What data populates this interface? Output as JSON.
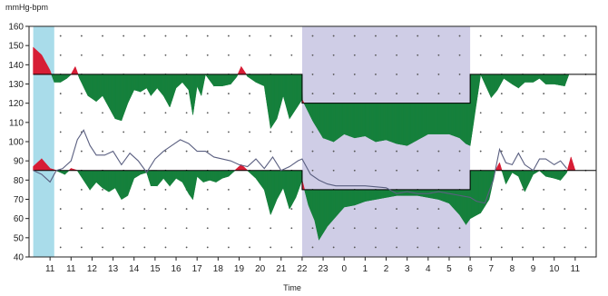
{
  "chart_data": {
    "type": "area",
    "ylabel": "mmHg-bpm",
    "xlabel": "Time",
    "ylim": [
      40,
      160
    ],
    "yticks": [
      40,
      50,
      60,
      70,
      80,
      90,
      100,
      110,
      120,
      130,
      140,
      150,
      160
    ],
    "xticks": [
      "11",
      "11",
      "12",
      "13",
      "14",
      "15",
      "16",
      "17",
      "18",
      "19",
      "20",
      "21",
      "22",
      "23",
      "0",
      "1",
      "2",
      "3",
      "4",
      "5",
      "6",
      "7",
      "8",
      "9",
      "10",
      "11"
    ],
    "xlim": [
      0,
      27
    ],
    "grid": "dotted",
    "shaded_regions": [
      {
        "from": 0.2,
        "to": 1.2,
        "color": "#a9dcea"
      },
      {
        "from": 13.0,
        "to": 21.0,
        "color": "#cfcde6"
      }
    ],
    "colors": {
      "above": "#d71e36",
      "below": "#16803c",
      "line": "#5a5f80"
    },
    "series": [
      {
        "threshold": [
          [
            0.2,
            135
          ],
          [
            13.0,
            135
          ],
          [
            13.0,
            120
          ],
          [
            21.0,
            120
          ],
          [
            21.0,
            135
          ],
          [
            27.0,
            135
          ]
        ],
        "values": [
          [
            0.2,
            149
          ],
          [
            0.6,
            145
          ],
          [
            1.0,
            137
          ],
          [
            1.2,
            131
          ],
          [
            1.5,
            131
          ],
          [
            1.8,
            133
          ],
          [
            2.0,
            135
          ],
          [
            2.2,
            139
          ],
          [
            2.4,
            133
          ],
          [
            2.8,
            124
          ],
          [
            3.2,
            121
          ],
          [
            3.5,
            124
          ],
          [
            3.8,
            118
          ],
          [
            4.1,
            112
          ],
          [
            4.4,
            111
          ],
          [
            4.7,
            120
          ],
          [
            5.0,
            127
          ],
          [
            5.3,
            126
          ],
          [
            5.6,
            128
          ],
          [
            5.8,
            124
          ],
          [
            6.1,
            128
          ],
          [
            6.4,
            124
          ],
          [
            6.7,
            118
          ],
          [
            7.0,
            128
          ],
          [
            7.3,
            131
          ],
          [
            7.6,
            127
          ],
          [
            7.8,
            114
          ],
          [
            8.0,
            129
          ],
          [
            8.2,
            124
          ],
          [
            8.4,
            135
          ],
          [
            8.8,
            129
          ],
          [
            9.2,
            129
          ],
          [
            9.6,
            130
          ],
          [
            9.9,
            134
          ],
          [
            10.1,
            139
          ],
          [
            10.4,
            134
          ],
          [
            10.8,
            131
          ],
          [
            11.2,
            129
          ],
          [
            11.5,
            107
          ],
          [
            11.8,
            112
          ],
          [
            12.1,
            124
          ],
          [
            12.4,
            112
          ],
          [
            12.7,
            117
          ],
          [
            13.0,
            122
          ],
          [
            13.5,
            111
          ],
          [
            14.0,
            102
          ],
          [
            14.5,
            100
          ],
          [
            15.0,
            104
          ],
          [
            15.5,
            102
          ],
          [
            16.0,
            103
          ],
          [
            16.5,
            100
          ],
          [
            17.0,
            101
          ],
          [
            17.5,
            99
          ],
          [
            18.0,
            98
          ],
          [
            18.5,
            101
          ],
          [
            19.0,
            104
          ],
          [
            19.5,
            104
          ],
          [
            20.0,
            104
          ],
          [
            20.5,
            102
          ],
          [
            20.8,
            99
          ],
          [
            21.0,
            98
          ],
          [
            21.5,
            135
          ],
          [
            22.0,
            123
          ],
          [
            22.3,
            127
          ],
          [
            22.6,
            133
          ],
          [
            23.0,
            130
          ],
          [
            23.3,
            128
          ],
          [
            23.6,
            131
          ],
          [
            24.0,
            131
          ],
          [
            24.3,
            133
          ],
          [
            24.6,
            130
          ],
          [
            25.0,
            130
          ],
          [
            25.5,
            129
          ],
          [
            25.7,
            135
          ]
        ]
      },
      {
        "threshold": [
          [
            0.2,
            85
          ],
          [
            13.0,
            85
          ],
          [
            13.0,
            75
          ],
          [
            21.0,
            75
          ],
          [
            21.0,
            85
          ],
          [
            27.0,
            85
          ]
        ],
        "values": [
          [
            0.2,
            87
          ],
          [
            0.6,
            91
          ],
          [
            1.0,
            86
          ],
          [
            1.3,
            85
          ],
          [
            1.7,
            83
          ],
          [
            2.0,
            86
          ],
          [
            2.3,
            85
          ],
          [
            2.6,
            80
          ],
          [
            2.9,
            75
          ],
          [
            3.2,
            79
          ],
          [
            3.5,
            76
          ],
          [
            3.8,
            74
          ],
          [
            4.1,
            76
          ],
          [
            4.4,
            70
          ],
          [
            4.7,
            72
          ],
          [
            5.0,
            81
          ],
          [
            5.3,
            83
          ],
          [
            5.6,
            84
          ],
          [
            5.8,
            77
          ],
          [
            6.1,
            77
          ],
          [
            6.4,
            81
          ],
          [
            6.7,
            77
          ],
          [
            7.0,
            81
          ],
          [
            7.3,
            79
          ],
          [
            7.6,
            73
          ],
          [
            7.8,
            70
          ],
          [
            8.0,
            82
          ],
          [
            8.3,
            79
          ],
          [
            8.6,
            80
          ],
          [
            8.9,
            79
          ],
          [
            9.2,
            81
          ],
          [
            9.5,
            82
          ],
          [
            9.8,
            85
          ],
          [
            10.1,
            88
          ],
          [
            10.4,
            85
          ],
          [
            10.8,
            81
          ],
          [
            11.2,
            75
          ],
          [
            11.5,
            62
          ],
          [
            11.8,
            70
          ],
          [
            12.1,
            76
          ],
          [
            12.4,
            65
          ],
          [
            12.7,
            71
          ],
          [
            13.0,
            80
          ],
          [
            13.3,
            67
          ],
          [
            13.6,
            59
          ],
          [
            13.8,
            49
          ],
          [
            14.2,
            56
          ],
          [
            14.6,
            61
          ],
          [
            15.0,
            66
          ],
          [
            15.5,
            67
          ],
          [
            16.0,
            69
          ],
          [
            16.5,
            70
          ],
          [
            17.0,
            71
          ],
          [
            17.5,
            72
          ],
          [
            18.0,
            72
          ],
          [
            18.5,
            72
          ],
          [
            19.0,
            71
          ],
          [
            19.5,
            70
          ],
          [
            20.0,
            68
          ],
          [
            20.5,
            62
          ],
          [
            20.8,
            57
          ],
          [
            21.0,
            60
          ],
          [
            21.5,
            63
          ],
          [
            21.9,
            70
          ],
          [
            22.2,
            85
          ],
          [
            22.4,
            89
          ],
          [
            22.7,
            78
          ],
          [
            23.0,
            84
          ],
          [
            23.3,
            82
          ],
          [
            23.6,
            74
          ],
          [
            24.0,
            83
          ],
          [
            24.3,
            85
          ],
          [
            24.6,
            82
          ],
          [
            25.0,
            81
          ],
          [
            25.3,
            80
          ],
          [
            25.6,
            84
          ],
          [
            25.8,
            92
          ],
          [
            26.0,
            85
          ]
        ]
      },
      {
        "values": [
          [
            0.2,
            85
          ],
          [
            0.6,
            83
          ],
          [
            1.0,
            79
          ],
          [
            1.3,
            85
          ],
          [
            1.6,
            86
          ],
          [
            2.0,
            90
          ],
          [
            2.3,
            101
          ],
          [
            2.6,
            106
          ],
          [
            2.9,
            98
          ],
          [
            3.2,
            93
          ],
          [
            3.6,
            93
          ],
          [
            4.0,
            95
          ],
          [
            4.4,
            88
          ],
          [
            4.8,
            94
          ],
          [
            5.2,
            90
          ],
          [
            5.6,
            84
          ],
          [
            6.0,
            91
          ],
          [
            6.4,
            95
          ],
          [
            6.8,
            98
          ],
          [
            7.2,
            101
          ],
          [
            7.6,
            99
          ],
          [
            8.0,
            95
          ],
          [
            8.4,
            95
          ],
          [
            8.8,
            92
          ],
          [
            9.2,
            91
          ],
          [
            9.6,
            90
          ],
          [
            10.0,
            88
          ],
          [
            10.4,
            87
          ],
          [
            10.8,
            91
          ],
          [
            11.2,
            86
          ],
          [
            11.6,
            92
          ],
          [
            12.0,
            85
          ],
          [
            12.4,
            87
          ],
          [
            12.8,
            90
          ],
          [
            13.0,
            91
          ],
          [
            13.4,
            83
          ],
          [
            13.8,
            80
          ],
          [
            14.2,
            78
          ],
          [
            14.6,
            77
          ],
          [
            15.0,
            77
          ],
          [
            16.0,
            77
          ],
          [
            17.0,
            76
          ],
          [
            17.5,
            73
          ],
          [
            18.0,
            74
          ],
          [
            18.5,
            73
          ],
          [
            19.0,
            73
          ],
          [
            19.5,
            74
          ],
          [
            20.0,
            73
          ],
          [
            20.5,
            72
          ],
          [
            21.0,
            71
          ],
          [
            21.3,
            69
          ],
          [
            21.7,
            68
          ],
          [
            22.1,
            80
          ],
          [
            22.4,
            96
          ],
          [
            22.7,
            89
          ],
          [
            23.0,
            88
          ],
          [
            23.3,
            94
          ],
          [
            23.6,
            88
          ],
          [
            24.0,
            85
          ],
          [
            24.3,
            91
          ],
          [
            24.6,
            91
          ],
          [
            25.0,
            88
          ],
          [
            25.3,
            90
          ],
          [
            25.6,
            86
          ]
        ]
      }
    ]
  }
}
